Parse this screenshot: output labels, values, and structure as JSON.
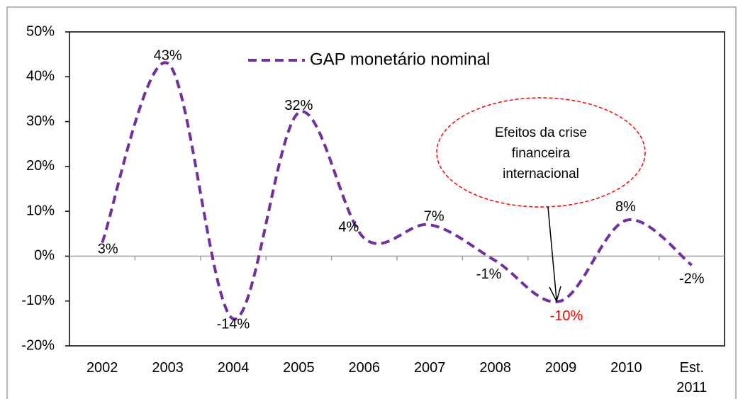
{
  "chart_data": {
    "type": "line",
    "categories": [
      "2002",
      "2003",
      "2004",
      "2005",
      "2006",
      "2007",
      "2008",
      "2009",
      "2010",
      "Est.\n2011"
    ],
    "series": [
      {
        "name": "GAP monetário nominal",
        "color": "#7030a0",
        "values": [
          3,
          43,
          -14,
          32,
          4,
          7,
          -1,
          -10,
          8,
          -2
        ],
        "value_labels": [
          "3%",
          "43%",
          "-14%",
          "32%",
          "4%",
          "7%",
          "-1%",
          "-10%",
          "8%",
          "-2%"
        ],
        "value_label_colors": [
          "#000000",
          "#000000",
          "#000000",
          "#000000",
          "#000000",
          "#000000",
          "#000000",
          "#ff0000",
          "#000000",
          "#000000"
        ]
      }
    ],
    "ylim": [
      -20,
      50
    ],
    "yticks": [
      {
        "value": -20,
        "label": "-20%"
      },
      {
        "value": -10,
        "label": "-10%"
      },
      {
        "value": 0,
        "label": "0%"
      },
      {
        "value": 10,
        "label": "10%"
      },
      {
        "value": 20,
        "label": "20%"
      },
      {
        "value": 30,
        "label": "30%"
      },
      {
        "value": 40,
        "label": "40%"
      },
      {
        "value": 50,
        "label": "50%"
      }
    ],
    "smooth": true,
    "dashed": true,
    "legend": "top",
    "annotation": {
      "lines": [
        "Efeitos da crise",
        "financeira",
        "internacional"
      ],
      "color": "#ff0000"
    }
  }
}
